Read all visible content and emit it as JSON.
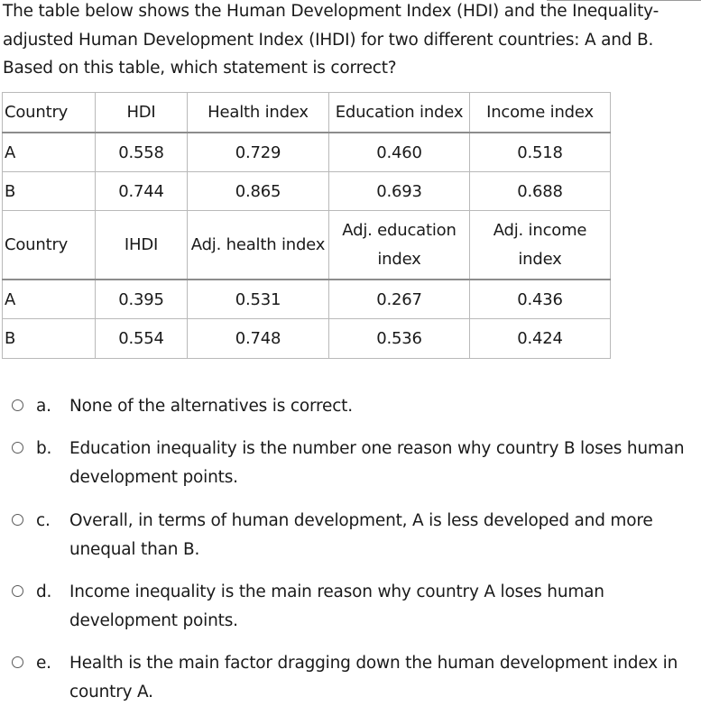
{
  "question": {
    "text": "The table below shows the Human Development Index (HDI) and the Inequality-adjusted Human Development Index (IHDI) for two different countries: A and B. Based on this table, which statement is correct?"
  },
  "table": {
    "header1": [
      "Country",
      "HDI",
      "Health index",
      "Education index",
      "Income index"
    ],
    "rows1": [
      [
        "A",
        "0.558",
        "0.729",
        "0.460",
        "0.518"
      ],
      [
        "B",
        "0.744",
        "0.865",
        "0.693",
        "0.688"
      ]
    ],
    "header2": [
      "Country",
      "IHDI",
      "Adj. health index",
      "Adj. education index",
      "Adj. income index"
    ],
    "rows2": [
      [
        "A",
        "0.395",
        "0.531",
        "0.267",
        "0.436"
      ],
      [
        "B",
        "0.554",
        "0.748",
        "0.536",
        "0.424"
      ]
    ]
  },
  "options": [
    {
      "letter": "a.",
      "text": "None of the alternatives is correct."
    },
    {
      "letter": "b.",
      "text": "Education inequality is the number one reason why country B loses human development points."
    },
    {
      "letter": "c.",
      "text": "Overall, in terms of human development, A is less developed and more unequal than B."
    },
    {
      "letter": "d.",
      "text": "Income inequality is the main reason why country A loses human development points."
    },
    {
      "letter": "e.",
      "text": "Health is the main factor dragging down the human development index in country A."
    }
  ]
}
